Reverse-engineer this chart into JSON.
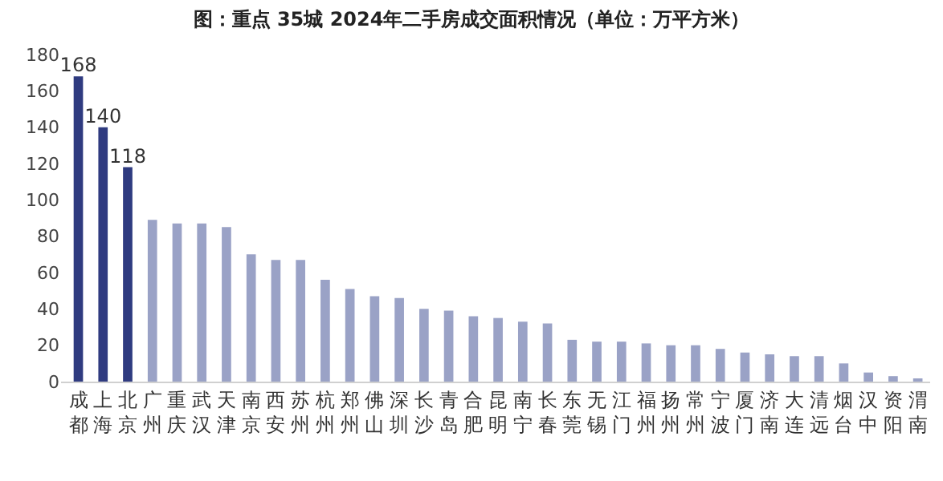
{
  "chart_data": {
    "type": "bar",
    "title": "图：重点 35城 2024年二手房成交面积情况（单位：万平方米）",
    "categories": [
      "成都",
      "上海",
      "北京",
      "广州",
      "重庆",
      "武汉",
      "天津",
      "南京",
      "西安",
      "苏州",
      "杭州",
      "郑州",
      "佛山",
      "深圳",
      "长沙",
      "青岛",
      "合肥",
      "昆明",
      "南宁",
      "长春",
      "东莞",
      "无锡",
      "江门",
      "福州",
      "扬州",
      "常州",
      "宁波",
      "厦门",
      "济南",
      "大连",
      "清远",
      "烟台",
      "汉中",
      "资阳",
      "渭南"
    ],
    "values": [
      168,
      140,
      118,
      89,
      87,
      87,
      85,
      70,
      67,
      67,
      56,
      51,
      47,
      46,
      40,
      39,
      36,
      35,
      33,
      32,
      23,
      22,
      22,
      21,
      20,
      20,
      18,
      16,
      15,
      14,
      14,
      10,
      5,
      3,
      1
    ],
    "value_labels": [
      "168",
      "140",
      "118",
      null,
      null,
      null,
      null,
      null,
      null,
      null,
      null,
      null,
      null,
      null,
      null,
      null,
      null,
      null,
      null,
      null,
      null,
      null,
      null,
      null,
      null,
      null,
      null,
      null,
      null,
      null,
      null,
      null,
      null,
      null,
      null
    ],
    "colors": [
      "#2f3b80",
      "#2f3b80",
      "#2f3b80",
      "#9aa2c6",
      "#9aa2c6",
      "#9aa2c6",
      "#9aa2c6",
      "#9aa2c6",
      "#9aa2c6",
      "#9aa2c6",
      "#9aa2c6",
      "#9aa2c6",
      "#9aa2c6",
      "#9aa2c6",
      "#9aa2c6",
      "#9aa2c6",
      "#9aa2c6",
      "#9aa2c6",
      "#9aa2c6",
      "#9aa2c6",
      "#9aa2c6",
      "#9aa2c6",
      "#9aa2c6",
      "#9aa2c6",
      "#9aa2c6",
      "#9aa2c6",
      "#9aa2c6",
      "#9aa2c6",
      "#9aa2c6",
      "#9aa2c6",
      "#9aa2c6",
      "#9aa2c6",
      "#9aa2c6",
      "#9aa2c6",
      "#9aa2c6"
    ],
    "ylim": [
      0,
      180
    ],
    "yticks": [
      0,
      20,
      40,
      60,
      80,
      100,
      120,
      140,
      160,
      180
    ]
  }
}
